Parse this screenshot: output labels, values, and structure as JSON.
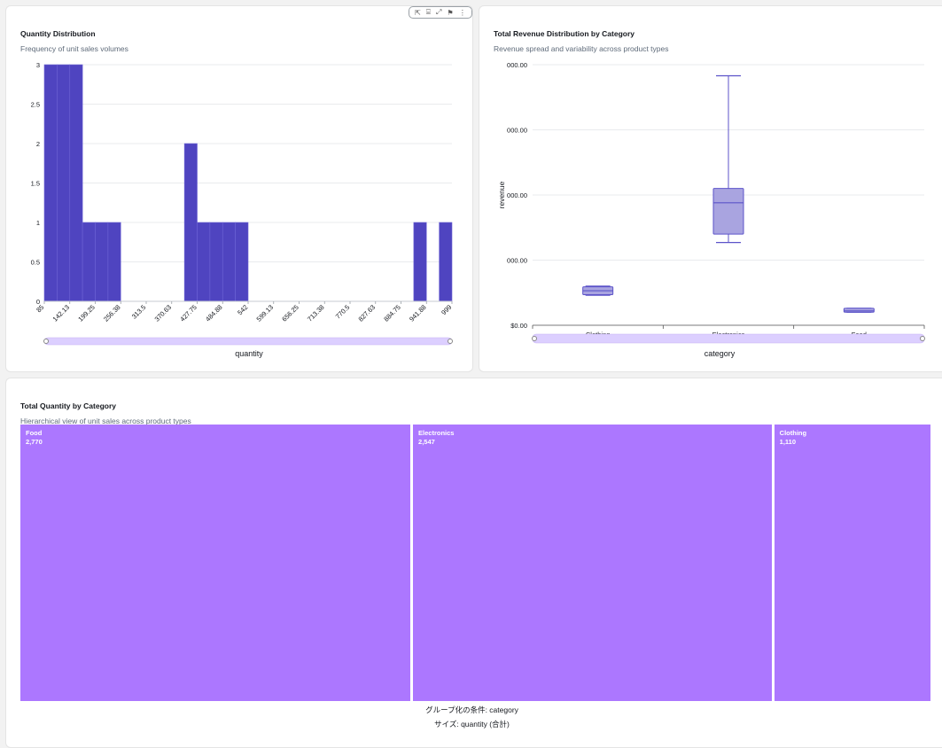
{
  "toolbar": {
    "icons": [
      "pin-icon",
      "filter-icon",
      "expand-icon",
      "flag-icon",
      "more-icon"
    ],
    "glyphs": [
      "⇱",
      "⌸",
      "⤢",
      "⚑",
      "⋮"
    ]
  },
  "histogram": {
    "title": "Quantity Distribution",
    "subtitle": "Frequency of unit sales volumes",
    "xlabel": "quantity",
    "color": "#4f44c0"
  },
  "boxplot": {
    "title": "Total Revenue Distribution by Category",
    "subtitle": "Revenue spread and variability across product types",
    "xlabel": "category",
    "ylabel": "revenue",
    "fill": "#a9a4e0",
    "stroke": "#5c53c9"
  },
  "treemap": {
    "title": "Total Quantity by Category",
    "subtitle": "Hierarchical view of unit sales across product types",
    "group_label": "グループ化の条件: category",
    "size_label": "サイズ: quantity (合計)",
    "color": "#ac77ff"
  },
  "chart_data": [
    {
      "type": "bar",
      "title": "Quantity Distribution",
      "subtitle": "Frequency of unit sales volumes",
      "xlabel": "quantity",
      "ylabel": "",
      "x_ticks": [
        "85",
        "142.13",
        "199.25",
        "256.38",
        "313.5",
        "370.63",
        "427.75",
        "484.88",
        "542",
        "599.13",
        "656.25",
        "713.38",
        "770.5",
        "827.63",
        "884.75",
        "941.88",
        "999"
      ],
      "bin_range": [
        85,
        999
      ],
      "values": [
        3,
        3,
        3,
        1,
        1,
        1,
        0,
        0,
        0,
        0,
        0,
        2,
        1,
        1,
        1,
        1,
        0,
        0,
        0,
        0,
        0,
        0,
        0,
        0,
        0,
        0,
        0,
        0,
        0,
        1,
        0,
        1
      ],
      "y_ticks": [
        "0",
        "0.5",
        "1",
        "1.5",
        "2",
        "2.5",
        "3"
      ],
      "ylim": [
        0,
        3
      ],
      "grid": true
    },
    {
      "type": "box",
      "title": "Total Revenue Distribution by Category",
      "subtitle": "Revenue spread and variability across product types",
      "xlabel": "category",
      "ylabel": "revenue",
      "categories": [
        "Clothing",
        "Electronics",
        "Food"
      ],
      "y_ticks": [
        "$0.00",
        "000.00",
        "000.00",
        "000.00",
        "000.00"
      ],
      "ylim": [
        0,
        4
      ],
      "boxes": [
        {
          "min": 0.46,
          "q1": 0.47,
          "median": 0.53,
          "q3": 0.59,
          "max": 0.6
        },
        {
          "min": 1.27,
          "q1": 1.4,
          "median": 1.88,
          "q3": 2.1,
          "max": 3.83
        },
        {
          "min": 0.2,
          "q1": 0.2,
          "median": 0.22,
          "q3": 0.26,
          "max": 0.26
        }
      ],
      "grid": true
    },
    {
      "type": "treemap",
      "title": "Total Quantity by Category",
      "subtitle": "Hierarchical view of unit sales across product types",
      "items": [
        {
          "label": "Food",
          "value": 2770,
          "display": "2,770"
        },
        {
          "label": "Electronics",
          "value": 2547,
          "display": "2,547"
        },
        {
          "label": "Clothing",
          "value": 1110,
          "display": "1,110"
        }
      ]
    }
  ]
}
